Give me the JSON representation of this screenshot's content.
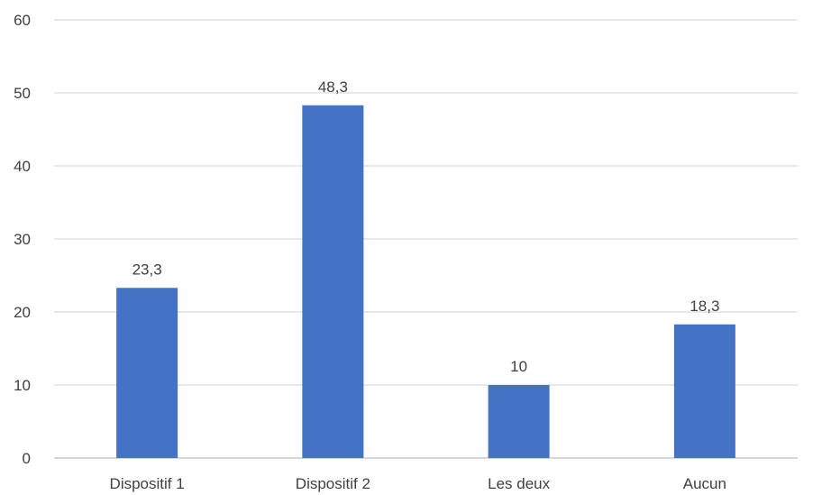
{
  "chart_data": {
    "type": "bar",
    "categories": [
      "Dispositif 1",
      "Dispositif 2",
      "Les deux",
      "Aucun"
    ],
    "values": [
      23.3,
      48.3,
      10,
      18.3
    ],
    "data_labels": [
      "23,3",
      "48,3",
      "10",
      "18,3"
    ],
    "title": "",
    "xlabel": "",
    "ylabel": "",
    "ylim": [
      0,
      60
    ],
    "yticks": [
      0,
      10,
      20,
      30,
      40,
      50,
      60
    ],
    "grid": true,
    "legend": "none",
    "bar_color": "#4472c4"
  }
}
